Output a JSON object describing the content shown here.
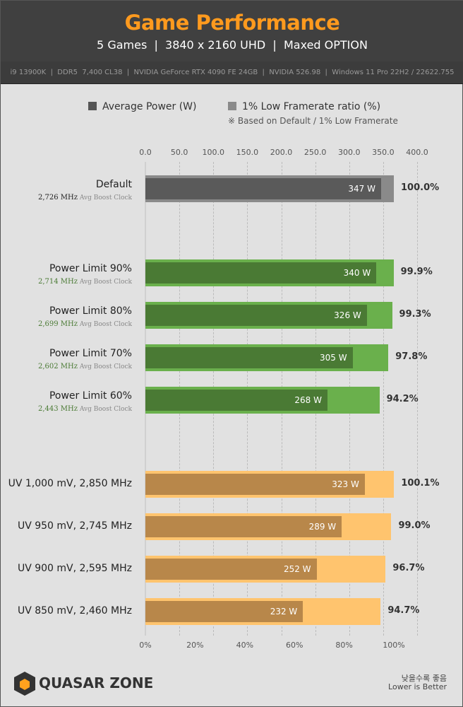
{
  "header": {
    "title": "Game Performance",
    "subtitle": "5 Games  |  3840 x 2160 UHD  |  Maxed OPTION",
    "spec": "i9 13900K  |  DDR5  7,400 CL38  |  NVIDIA GeForce RTX 4090 FE 24GB  |  NVIDIA 526.98  |  Windows 11 Pro 22H2 / 22622.755"
  },
  "footer": {
    "note_ko": "낮을수록 좋음",
    "note_en": "Lower is Better",
    "logo": "QUASAR ZONE"
  },
  "chart_data": {
    "type": "bar",
    "legend": [
      {
        "name": "Average Power (W)",
        "color": "#5a5a5a"
      },
      {
        "name": "1% Low Framerate ratio (%)",
        "color": "#8a8a8a"
      }
    ],
    "legend_note": "※ Based on Default / 1% Low Framerate",
    "legend_placement": "top",
    "top_axis": {
      "ticks": [
        "0.0",
        "50.0",
        "100.0",
        "150.0",
        "200.0",
        "250.0",
        "300.0",
        "350.0",
        "400.0"
      ],
      "range": [
        0,
        400
      ]
    },
    "bottom_axis": {
      "ticks": [
        "0%",
        "20%",
        "40%",
        "60%",
        "80%",
        "100%"
      ],
      "range": [
        0,
        100
      ]
    },
    "grid": true,
    "categories": [
      {
        "label": "Default",
        "clock": "2,726 MHz",
        "clock_suffix": "Avg Boost Clock",
        "power": 347,
        "power_label": "347 W",
        "ratio": 100.0,
        "ratio_label": "100.0%",
        "group": "default"
      },
      {
        "label": "Power Limit 90%",
        "clock": "2,714 MHz",
        "clock_suffix": "Avg Boost Clock",
        "power": 340,
        "power_label": "340 W",
        "ratio": 99.9,
        "ratio_label": "99.9%",
        "group": "pl"
      },
      {
        "label": "Power Limit 80%",
        "clock": "2,699 MHz",
        "clock_suffix": "Avg Boost Clock",
        "power": 326,
        "power_label": "326 W",
        "ratio": 99.3,
        "ratio_label": "99.3%",
        "group": "pl"
      },
      {
        "label": "Power Limit 70%",
        "clock": "2,602 MHz",
        "clock_suffix": "Avg Boost Clock",
        "power": 305,
        "power_label": "305 W",
        "ratio": 97.8,
        "ratio_label": "97.8%",
        "group": "pl"
      },
      {
        "label": "Power Limit 60%",
        "clock": "2,443 MHz",
        "clock_suffix": "Avg Boost Clock",
        "power": 268,
        "power_label": "268 W",
        "ratio": 94.2,
        "ratio_label": "94.2%",
        "group": "pl"
      },
      {
        "label": "UV 1,000 mV, 2,850 MHz",
        "power": 323,
        "power_label": "323 W",
        "ratio": 100.1,
        "ratio_label": "100.1%",
        "group": "uv"
      },
      {
        "label": "UV 950 mV, 2,745 MHz",
        "power": 289,
        "power_label": "289 W",
        "ratio": 99.0,
        "ratio_label": "99.0%",
        "group": "uv"
      },
      {
        "label": "UV 900 mV, 2,595 MHz",
        "power": 252,
        "power_label": "252 W",
        "ratio": 96.7,
        "ratio_label": "96.7%",
        "group": "uv"
      },
      {
        "label": "UV 850 mV, 2,460 MHz",
        "power": 232,
        "power_label": "232 W",
        "ratio": 94.7,
        "ratio_label": "94.7%",
        "group": "uv"
      }
    ],
    "colors": {
      "default": [
        "#5a5a5a",
        "#8a8a8a"
      ],
      "pl": [
        "#4a7a34",
        "#6ab04c"
      ],
      "uv": [
        "#b8874a",
        "#ffc46e"
      ],
      "pl_clock": "#4a7a34"
    }
  }
}
